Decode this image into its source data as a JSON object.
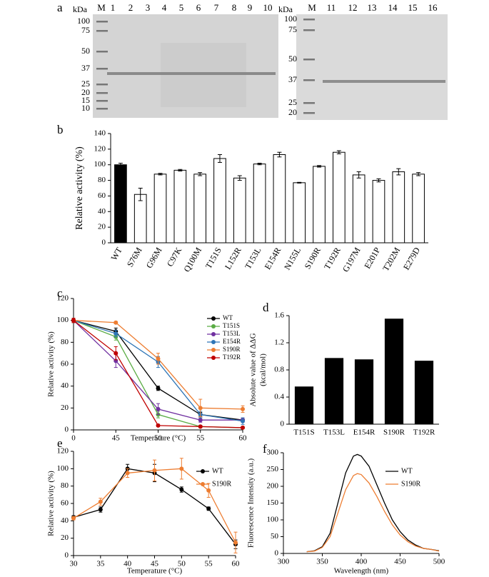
{
  "gel": {
    "label": "a",
    "unit": "kDa",
    "left": {
      "lanes": [
        "M",
        "1",
        "2",
        "3",
        "4",
        "5",
        "6",
        "7",
        "8",
        "9",
        "10"
      ],
      "markers": [
        100,
        75,
        50,
        37,
        25,
        20,
        15,
        10
      ]
    },
    "right": {
      "lanes": [
        "M",
        "11",
        "12",
        "13",
        "14",
        "15",
        "16"
      ],
      "markers": [
        100,
        75,
        50,
        37,
        25,
        20
      ]
    }
  },
  "chart_data": [
    {
      "type": "bar",
      "panel": "b",
      "ylabel": "Relative activity (%)",
      "categories": [
        "WT",
        "S76M",
        "G96M",
        "C97K",
        "Q100M",
        "T151S",
        "L152R",
        "T153L",
        "E154R",
        "N155L",
        "S190R",
        "T192R",
        "G197M",
        "E201P",
        "T202M",
        "E279D"
      ],
      "values": [
        100,
        62,
        88,
        93,
        88,
        108,
        83,
        101,
        113,
        77,
        98,
        116,
        87,
        80,
        91,
        88
      ],
      "errors": [
        2,
        8,
        1,
        1,
        2,
        5,
        3,
        1,
        3,
        0.5,
        1,
        2,
        4,
        2,
        4,
        2
      ],
      "colors": [
        "#000000",
        "#ffffff",
        "#ffffff",
        "#ffffff",
        "#ffffff",
        "#ffffff",
        "#ffffff",
        "#ffffff",
        "#ffffff",
        "#ffffff",
        "#ffffff",
        "#ffffff",
        "#ffffff",
        "#ffffff",
        "#ffffff",
        "#ffffff"
      ],
      "ylim": [
        0,
        140
      ],
      "yticks": [
        0,
        20,
        40,
        60,
        80,
        100,
        120,
        140
      ]
    },
    {
      "type": "line",
      "panel": "c",
      "ylabel": "Relative activity (%)",
      "xlabel": "Temperature (°C)",
      "categories": [
        "0",
        "45",
        "50",
        "55",
        "60"
      ],
      "markers": true,
      "legend": "upper right",
      "series": [
        {
          "name": "WT",
          "color": "#000000",
          "values": [
            100,
            90,
            38,
            14,
            9
          ],
          "errors": [
            2,
            3,
            2,
            2,
            1
          ]
        },
        {
          "name": "T151S",
          "color": "#5aac44",
          "values": [
            100,
            85,
            14,
            3,
            2
          ],
          "errors": [
            2,
            3,
            3,
            1,
            1
          ]
        },
        {
          "name": "T153L",
          "color": "#7030a0",
          "values": [
            100,
            63,
            19,
            9,
            9
          ],
          "errors": [
            2,
            6,
            5,
            2,
            2
          ]
        },
        {
          "name": "E154R",
          "color": "#2e75b6",
          "values": [
            100,
            88,
            62,
            14,
            8
          ],
          "errors": [
            2,
            3,
            5,
            3,
            3
          ]
        },
        {
          "name": "S190R",
          "color": "#ed7d31",
          "values": [
            100,
            98,
            65,
            20,
            19
          ],
          "errors": [
            2,
            1,
            5,
            8,
            3
          ]
        },
        {
          "name": "T192R",
          "color": "#c00000",
          "values": [
            100,
            70,
            4,
            3,
            2
          ],
          "errors": [
            2,
            6,
            1,
            1,
            1
          ]
        }
      ],
      "ylim": [
        0,
        120
      ],
      "yticks": [
        0,
        20,
        40,
        60,
        80,
        100,
        120
      ]
    },
    {
      "type": "bar",
      "panel": "d",
      "ylabel": [
        "Absolute value of ΔΔG",
        "(kcal/mol)"
      ],
      "categories": [
        "T151S",
        "T153L",
        "E154R",
        "S190R",
        "T192R"
      ],
      "values": [
        0.55,
        0.97,
        0.95,
        1.55,
        0.93
      ],
      "colors": [
        "#000000",
        "#000000",
        "#000000",
        "#000000",
        "#000000"
      ],
      "ylim": [
        0,
        1.6
      ],
      "yticks": [
        0,
        0.4,
        0.8,
        1.2,
        1.6
      ]
    },
    {
      "type": "line",
      "panel": "e",
      "ylabel": "Relative activity (%)",
      "xlabel": "Temperature (°C)",
      "x": [
        30,
        35,
        40,
        45,
        50,
        55,
        60
      ],
      "markers": true,
      "legend": "upper right",
      "series": [
        {
          "name": "WT",
          "color": "#000000",
          "values": [
            44,
            53,
            100,
            95,
            76,
            54,
            13
          ],
          "errors": [
            2,
            3,
            5,
            10,
            3,
            2,
            5
          ]
        },
        {
          "name": "S190R",
          "color": "#ed7d31",
          "values": [
            43,
            62,
            95,
            98,
            100,
            75,
            15
          ],
          "errors": [
            2,
            4,
            5,
            12,
            12,
            8,
            12
          ]
        }
      ],
      "xlim": [
        30,
        60
      ],
      "xticks": [
        30,
        35,
        40,
        45,
        50,
        55,
        60
      ],
      "ylim": [
        0,
        120
      ],
      "yticks": [
        0,
        20,
        40,
        60,
        80,
        100,
        120
      ]
    },
    {
      "type": "line",
      "panel": "f",
      "ylabel": "Fluorescence Intensity (a.u.)",
      "xlabel": "Wavelength (nm)",
      "x": [
        330,
        340,
        350,
        360,
        370,
        380,
        390,
        395,
        400,
        410,
        420,
        430,
        440,
        450,
        460,
        470,
        480,
        490,
        500
      ],
      "markers": false,
      "legend": "upper right",
      "series": [
        {
          "name": "WT",
          "color": "#000000",
          "values": [
            5,
            8,
            20,
            60,
            150,
            240,
            290,
            295,
            290,
            260,
            205,
            150,
            100,
            65,
            40,
            25,
            15,
            12,
            8
          ]
        },
        {
          "name": "S190R",
          "color": "#ed7d31",
          "values": [
            5,
            7,
            18,
            50,
            120,
            190,
            232,
            238,
            235,
            210,
            170,
            125,
            85,
            55,
            35,
            22,
            15,
            12,
            7
          ]
        }
      ],
      "xlim": [
        300,
        500
      ],
      "xticks": [
        300,
        350,
        400,
        450,
        500
      ],
      "ylim": [
        0,
        300
      ],
      "yticks": [
        0,
        50,
        100,
        150,
        200,
        250,
        300
      ]
    }
  ]
}
